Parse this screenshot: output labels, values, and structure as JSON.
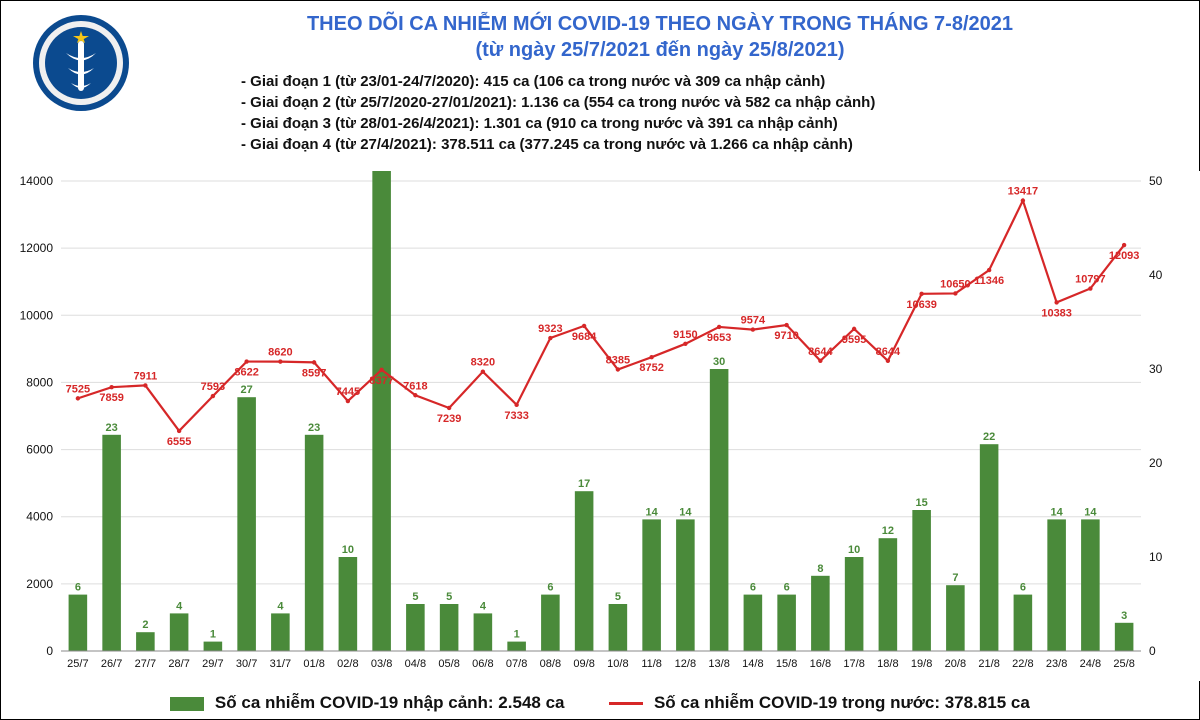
{
  "title": {
    "line1": "THEO DÕI CA NHIỄM MỚI COVID-19 THEO NGÀY TRONG THÁNG 7-8/2021",
    "line2": "(từ ngày 25/7/2021 đến ngày 25/8/2021)"
  },
  "notes": [
    "- Giai đoạn 1 (từ 23/01-24/7/2020): 415 ca (106 ca trong nước và 309 ca nhập cảnh)",
    "- Giai đoạn 2 (từ 25/7/2020-27/01/2021): 1.136 ca (554 ca trong nước và 582 ca nhập cảnh)",
    "- Giai đoạn 3 (từ 28/01-26/4/2021): 1.301 ca (910 ca trong nước và 391 ca nhập cảnh)",
    "- Giai đoạn 4 (từ 27/4/2021): 378.511 ca (377.245 ca trong nước và 1.266 ca nhập cảnh)"
  ],
  "legend": {
    "bar_label": "Số ca nhiễm COVID-19 nhập cảnh: 2.548 ca",
    "line_label": "Số ca nhiễm COVID-19 trong nước: 378.815 ca"
  },
  "chart": {
    "type": "bar+line",
    "categories": [
      "25/7",
      "26/7",
      "27/7",
      "28/7",
      "29/7",
      "30/7",
      "31/7",
      "01/8",
      "02/8",
      "03/8",
      "04/8",
      "05/8",
      "06/8",
      "07/8",
      "08/8",
      "09/8",
      "10/8",
      "11/8",
      "12/8",
      "13/8",
      "14/8",
      "15/8",
      "16/8",
      "17/8",
      "18/8",
      "19/8",
      "20/8",
      "21/8",
      "22/8",
      "23/8",
      "24/8",
      "25/8"
    ],
    "bar_values": [
      6,
      23,
      2,
      4,
      1,
      27,
      4,
      23,
      10,
      52,
      5,
      5,
      4,
      1,
      6,
      17,
      5,
      14,
      14,
      30,
      6,
      6,
      8,
      10,
      12,
      15,
      7,
      22,
      6,
      14,
      14,
      3
    ],
    "line_values": [
      7525,
      7859,
      7911,
      6555,
      7593,
      8622,
      8620,
      8597,
      7445,
      8377,
      7618,
      7239,
      8320,
      7333,
      9323,
      9684,
      8385,
      8752,
      9150,
      9653,
      9574,
      9710,
      8644,
      9595,
      8644,
      10639,
      10650,
      11346,
      13417,
      10383,
      10797,
      12093
    ],
    "left_axis": {
      "min": 0,
      "max": 14000,
      "step": 2000,
      "label_color": "#111",
      "fontsize": 12
    },
    "right_axis": {
      "min": 0,
      "max": 50,
      "step": 10,
      "label_color": "#111",
      "fontsize": 12
    },
    "bar_color": "#4a8a3a",
    "line_color": "#d62728",
    "bar_label_color": "#4a8a3a",
    "line_label_color": "#d62728",
    "grid_color": "#dddddd",
    "background_color": "#ffffff",
    "bar_width": 0.55,
    "line_width": 2.2,
    "label_fontsize": 11,
    "axis_fontsize": 12
  }
}
